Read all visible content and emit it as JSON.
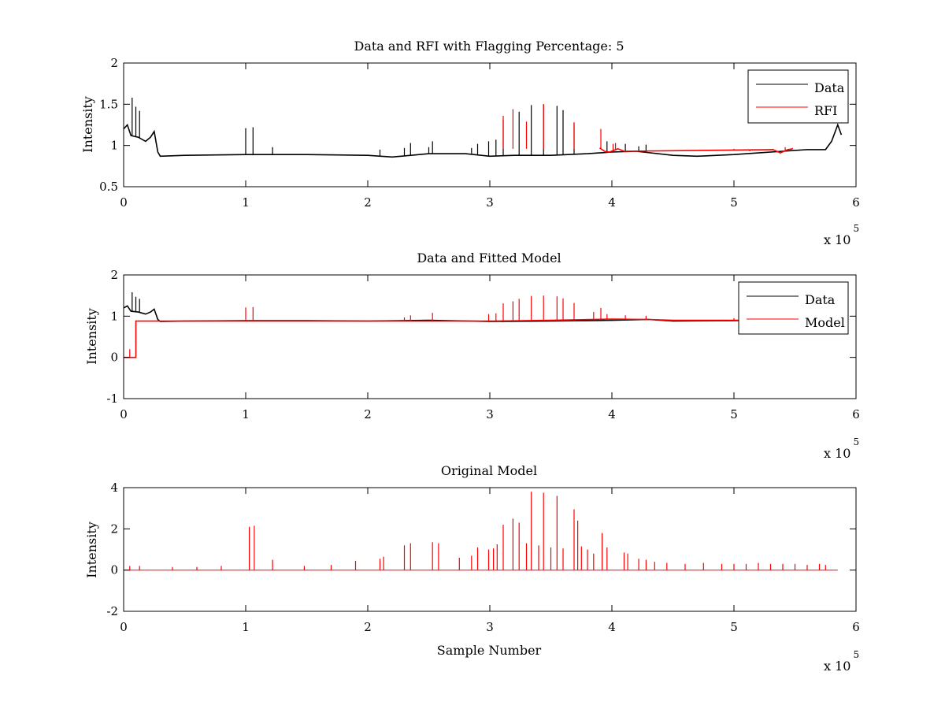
{
  "chart_data": [
    {
      "type": "line",
      "title": "Data and RFI with Flagging Percentage: 5",
      "xlabel": "",
      "ylabel": "Intensity",
      "xlim": [
        0,
        600000
      ],
      "ylim": [
        0.5,
        2
      ],
      "xticks": [
        0,
        1,
        2,
        3,
        4,
        5,
        6
      ],
      "yticks": [
        0.5,
        1,
        1.5,
        2
      ],
      "ytick_labels": [
        "0.5",
        "1",
        "1.5",
        "2"
      ],
      "x_exponent": "x 10",
      "x_exponent_power": "5",
      "grid": false,
      "legend_position": "top-right",
      "series": [
        {
          "name": "Data",
          "color": "#000000",
          "points": [
            [
              0,
              1.2
            ],
            [
              3000,
              1.25
            ],
            [
              6000,
              1.12
            ],
            [
              12000,
              1.1
            ],
            [
              18000,
              1.05
            ],
            [
              22000,
              1.1
            ],
            [
              25000,
              1.17
            ],
            [
              28000,
              0.92
            ],
            [
              30000,
              0.87
            ],
            [
              50000,
              0.88
            ],
            [
              100000,
              0.89
            ],
            [
              150000,
              0.89
            ],
            [
              200000,
              0.88
            ],
            [
              220000,
              0.86
            ],
            [
              250000,
              0.9
            ],
            [
              280000,
              0.9
            ],
            [
              300000,
              0.87
            ],
            [
              320000,
              0.88
            ],
            [
              350000,
              0.88
            ],
            [
              380000,
              0.9
            ],
            [
              400000,
              0.92
            ],
            [
              420000,
              0.93
            ],
            [
              450000,
              0.88
            ],
            [
              470000,
              0.87
            ],
            [
              500000,
              0.89
            ],
            [
              520000,
              0.91
            ],
            [
              540000,
              0.93
            ],
            [
              560000,
              0.95
            ],
            [
              575000,
              0.95
            ],
            [
              580000,
              1.05
            ],
            [
              585000,
              1.25
            ],
            [
              588000,
              1.13
            ]
          ],
          "spikes": [
            [
              7000,
              1.58
            ],
            [
              10000,
              1.47
            ],
            [
              13000,
              1.42
            ],
            [
              100000,
              1.21
            ],
            [
              106000,
              1.22
            ],
            [
              122000,
              0.98
            ],
            [
              210000,
              0.95
            ],
            [
              230000,
              0.97
            ],
            [
              235000,
              1.03
            ],
            [
              250000,
              0.98
            ],
            [
              253000,
              1.05
            ],
            [
              285000,
              0.97
            ],
            [
              290000,
              1.02
            ],
            [
              299000,
              1.05
            ],
            [
              305000,
              1.07
            ],
            [
              311000,
              1.31
            ],
            [
              324000,
              1.41
            ],
            [
              334000,
              1.49
            ],
            [
              344000,
              1.5
            ],
            [
              355000,
              1.48
            ],
            [
              360000,
              1.43
            ],
            [
              369000,
              1.28
            ],
            [
              396000,
              1.05
            ],
            [
              411000,
              1.02
            ],
            [
              422000,
              0.99
            ],
            [
              428000,
              1.01
            ]
          ]
        },
        {
          "name": "RFI",
          "color": "#ff0000",
          "points": [
            [
              390000,
              0.97
            ],
            [
              394000,
              0.93
            ],
            [
              398000,
              0.92
            ],
            [
              405000,
              0.96
            ],
            [
              410000,
              0.93
            ],
            [
              532000,
              0.95
            ],
            [
              538000,
              0.91
            ],
            [
              544000,
              0.95
            ],
            [
              548000,
              0.96
            ]
          ],
          "spikes": [
            [
              311000,
              1.36
            ],
            [
              319000,
              1.44
            ],
            [
              330000,
              1.29
            ],
            [
              344000,
              1.5
            ],
            [
              369000,
              1.28
            ],
            [
              391000,
              1.2
            ],
            [
              401000,
              1.02
            ],
            [
              403000,
              1.03
            ],
            [
              490000,
              0.94
            ],
            [
              500000,
              0.96
            ],
            [
              513000,
              0.93
            ],
            [
              520000,
              0.95
            ],
            [
              532000,
              0.96
            ],
            [
              542000,
              0.98
            ],
            [
              548000,
              0.97
            ]
          ]
        }
      ]
    },
    {
      "type": "line",
      "title": "Data and Fitted Model",
      "xlabel": "",
      "ylabel": "Intensity",
      "xlim": [
        0,
        600000
      ],
      "ylim": [
        -1,
        2
      ],
      "xticks": [
        0,
        1,
        2,
        3,
        4,
        5,
        6
      ],
      "yticks": [
        -1,
        0,
        1,
        2
      ],
      "ytick_labels": [
        "-1",
        "0",
        "1",
        "2"
      ],
      "x_exponent": "x 10",
      "x_exponent_power": "5",
      "grid": false,
      "legend_position": "top-right",
      "series": [
        {
          "name": "Data",
          "color": "#000000",
          "points": [
            [
              0,
              1.2
            ],
            [
              3000,
              1.25
            ],
            [
              6000,
              1.12
            ],
            [
              12000,
              1.1
            ],
            [
              18000,
              1.05
            ],
            [
              22000,
              1.1
            ],
            [
              25000,
              1.17
            ],
            [
              28000,
              0.92
            ],
            [
              30000,
              0.87
            ],
            [
              50000,
              0.88
            ],
            [
              100000,
              0.89
            ],
            [
              150000,
              0.89
            ],
            [
              200000,
              0.88
            ],
            [
              250000,
              0.9
            ],
            [
              300000,
              0.87
            ],
            [
              350000,
              0.88
            ],
            [
              400000,
              0.9
            ],
            [
              430000,
              0.92
            ],
            [
              450000,
              0.88
            ],
            [
              500000,
              0.89
            ],
            [
              520000,
              0.9
            ]
          ],
          "spikes": [
            [
              7000,
              1.58
            ],
            [
              10000,
              1.47
            ],
            [
              13000,
              1.42
            ]
          ]
        },
        {
          "name": "Model",
          "color": "#ff0000",
          "points": [
            [
              0,
              0
            ],
            [
              10000,
              0
            ],
            [
              10000,
              0.88
            ],
            [
              50000,
              0.88
            ],
            [
              150000,
              0.88
            ],
            [
              200000,
              0.88
            ],
            [
              250000,
              0.88
            ],
            [
              300000,
              0.88
            ],
            [
              350000,
              0.9
            ],
            [
              400000,
              0.93
            ],
            [
              430000,
              0.92
            ],
            [
              450000,
              0.9
            ],
            [
              500000,
              0.9
            ],
            [
              520000,
              0.9
            ]
          ],
          "spikes": [
            [
              5000,
              0.2
            ],
            [
              100000,
              1.21
            ],
            [
              106000,
              1.22
            ],
            [
              230000,
              0.97
            ],
            [
              235000,
              1.02
            ],
            [
              253000,
              1.08
            ],
            [
              299000,
              1.05
            ],
            [
              305000,
              1.07
            ],
            [
              311000,
              1.31
            ],
            [
              319000,
              1.36
            ],
            [
              324000,
              1.42
            ],
            [
              334000,
              1.49
            ],
            [
              344000,
              1.5
            ],
            [
              355000,
              1.48
            ],
            [
              360000,
              1.43
            ],
            [
              369000,
              1.32
            ],
            [
              385000,
              1.1
            ],
            [
              391000,
              1.2
            ],
            [
              396000,
              1.05
            ],
            [
              411000,
              1.02
            ],
            [
              428000,
              1.01
            ],
            [
              500000,
              0.95
            ]
          ]
        }
      ]
    },
    {
      "type": "line",
      "title": "Original Model",
      "xlabel": "Sample Number",
      "ylabel": "Intensity",
      "xlim": [
        0,
        600000
      ],
      "ylim": [
        -2,
        4
      ],
      "xticks": [
        0,
        1,
        2,
        3,
        4,
        5,
        6
      ],
      "yticks": [
        -2,
        0,
        2,
        4
      ],
      "ytick_labels": [
        "-2",
        "0",
        "2",
        "4"
      ],
      "x_exponent": "x 10",
      "x_exponent_power": "5",
      "grid": false,
      "series": [
        {
          "color": "#ff0000",
          "points": [
            [
              0,
              0
            ],
            [
              585000,
              0
            ]
          ],
          "spikes": [
            [
              5000,
              0.2
            ],
            [
              13000,
              0.2
            ],
            [
              40000,
              0.15
            ],
            [
              60000,
              0.15
            ],
            [
              80000,
              0.2
            ],
            [
              103000,
              2.1
            ],
            [
              107000,
              2.15
            ],
            [
              122000,
              0.5
            ],
            [
              148000,
              0.2
            ],
            [
              170000,
              0.25
            ],
            [
              190000,
              0.45
            ],
            [
              210000,
              0.55
            ],
            [
              213000,
              0.65
            ],
            [
              230000,
              1.2
            ],
            [
              235000,
              1.3
            ],
            [
              253000,
              1.35
            ],
            [
              258000,
              1.3
            ],
            [
              275000,
              0.6
            ],
            [
              285000,
              0.7
            ],
            [
              290000,
              1.1
            ],
            [
              299000,
              1.0
            ],
            [
              303000,
              1.05
            ],
            [
              306000,
              1.25
            ],
            [
              311000,
              2.2
            ],
            [
              319000,
              2.5
            ],
            [
              324000,
              2.3
            ],
            [
              330000,
              1.3
            ],
            [
              334000,
              3.8
            ],
            [
              340000,
              1.2
            ],
            [
              344000,
              3.75
            ],
            [
              350000,
              1.1
            ],
            [
              355000,
              3.6
            ],
            [
              360000,
              1.05
            ],
            [
              369000,
              2.95
            ],
            [
              372000,
              2.4
            ],
            [
              375000,
              1.15
            ],
            [
              380000,
              1.0
            ],
            [
              385000,
              0.8
            ],
            [
              392000,
              1.8
            ],
            [
              396000,
              1.1
            ],
            [
              410000,
              0.85
            ],
            [
              413000,
              0.8
            ],
            [
              422000,
              0.55
            ],
            [
              428000,
              0.5
            ],
            [
              435000,
              0.4
            ],
            [
              445000,
              0.35
            ],
            [
              460000,
              0.3
            ],
            [
              475000,
              0.35
            ],
            [
              490000,
              0.3
            ],
            [
              500000,
              0.3
            ],
            [
              510000,
              0.3
            ],
            [
              520000,
              0.35
            ],
            [
              530000,
              0.3
            ],
            [
              540000,
              0.3
            ],
            [
              550000,
              0.3
            ],
            [
              560000,
              0.25
            ],
            [
              570000,
              0.3
            ],
            [
              575000,
              0.25
            ]
          ]
        }
      ]
    }
  ]
}
